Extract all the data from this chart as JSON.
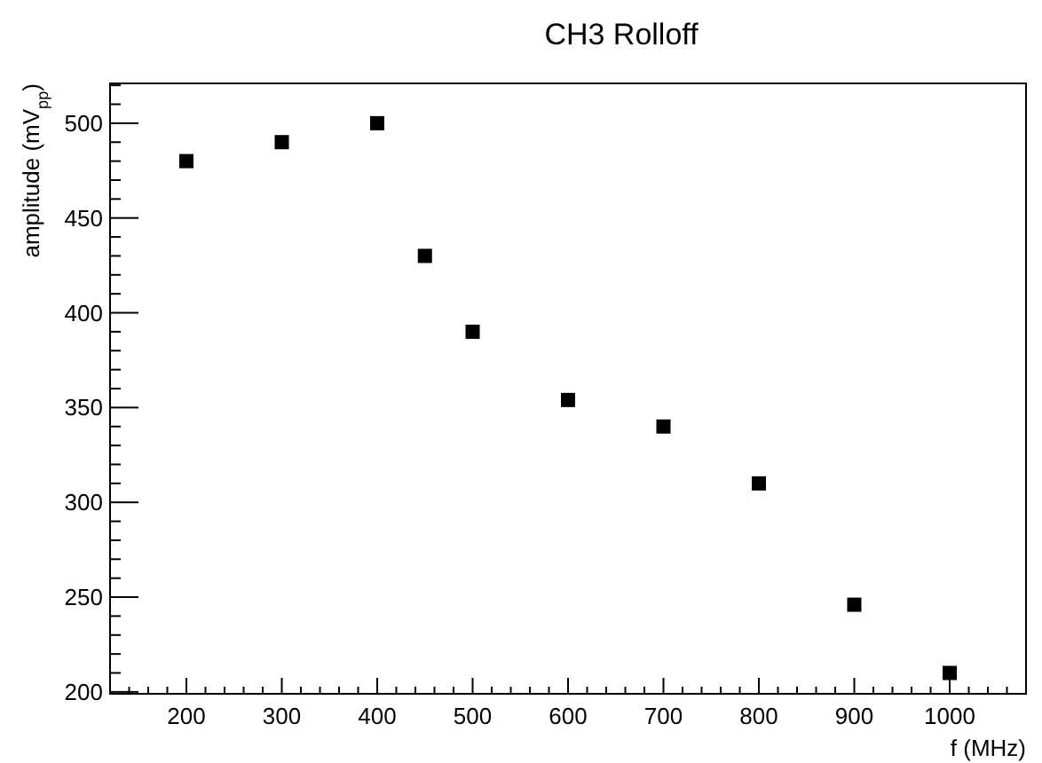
{
  "chart_data": {
    "type": "scatter",
    "title": "CH3 Rolloff",
    "xlabel": "f (MHz)",
    "ylabel": "amplitude (mV$_{pp}$)",
    "x": [
      200,
      300,
      400,
      450,
      500,
      600,
      700,
      800,
      900,
      1000
    ],
    "values": [
      480,
      490,
      500,
      430,
      390,
      354,
      340,
      310,
      246,
      210
    ],
    "color": "#000000",
    "marker": "square",
    "grid": false,
    "xlim": [
      120,
      1080
    ],
    "ylim": [
      199,
      521
    ],
    "xticks": [
      {
        "value": 140,
        "label": null
      },
      {
        "value": 160,
        "label": null
      },
      {
        "value": 180,
        "label": null
      },
      200,
      {
        "value": 220,
        "label": null
      },
      {
        "value": 240,
        "label": null
      },
      {
        "value": 260,
        "label": null
      },
      {
        "value": 280,
        "label": null
      },
      300,
      {
        "value": 320,
        "label": null
      },
      {
        "value": 340,
        "label": null
      },
      {
        "value": 360,
        "label": null
      },
      {
        "value": 380,
        "label": null
      },
      400,
      {
        "value": 420,
        "label": null
      },
      {
        "value": 440,
        "label": null
      },
      {
        "value": 460,
        "label": null
      },
      {
        "value": 480,
        "label": null
      },
      500,
      {
        "value": 520,
        "label": null
      },
      {
        "value": 540,
        "label": null
      },
      {
        "value": 560,
        "label": null
      },
      {
        "value": 580,
        "label": null
      },
      600,
      {
        "value": 620,
        "label": null
      },
      {
        "value": 640,
        "label": null
      },
      {
        "value": 660,
        "label": null
      },
      {
        "value": 680,
        "label": null
      },
      700,
      {
        "value": 720,
        "label": null
      },
      {
        "value": 740,
        "label": null
      },
      {
        "value": 760,
        "label": null
      },
      {
        "value": 780,
        "label": null
      },
      800,
      {
        "value": 820,
        "label": null
      },
      {
        "value": 840,
        "label": null
      },
      {
        "value": 860,
        "label": null
      },
      {
        "value": 880,
        "label": null
      },
      900,
      {
        "value": 920,
        "label": null
      },
      {
        "value": 940,
        "label": null
      },
      {
        "value": 960,
        "label": null
      },
      {
        "value": 980,
        "label": null
      },
      1000,
      {
        "value": 1020,
        "label": null
      },
      {
        "value": 1040,
        "label": null
      },
      {
        "value": 1060,
        "label": null
      }
    ],
    "yticks": [
      200,
      {
        "value": 210,
        "label": null
      },
      {
        "value": 220,
        "label": null
      },
      {
        "value": 230,
        "label": null
      },
      {
        "value": 240,
        "label": null
      },
      250,
      {
        "value": 260,
        "label": null
      },
      {
        "value": 270,
        "label": null
      },
      {
        "value": 280,
        "label": null
      },
      {
        "value": 290,
        "label": null
      },
      300,
      {
        "value": 310,
        "label": null
      },
      {
        "value": 320,
        "label": null
      },
      {
        "value": 330,
        "label": null
      },
      {
        "value": 340,
        "label": null
      },
      350,
      {
        "value": 360,
        "label": null
      },
      {
        "value": 370,
        "label": null
      },
      {
        "value": 380,
        "label": null
      },
      {
        "value": 390,
        "label": null
      },
      400,
      {
        "value": 410,
        "label": null
      },
      {
        "value": 420,
        "label": null
      },
      {
        "value": 430,
        "label": null
      },
      {
        "value": 440,
        "label": null
      },
      450,
      {
        "value": 460,
        "label": null
      },
      {
        "value": 470,
        "label": null
      },
      {
        "value": 480,
        "label": null
      },
      {
        "value": 490,
        "label": null
      },
      500,
      {
        "value": 510,
        "label": null
      },
      {
        "value": 520,
        "label": null
      }
    ]
  }
}
